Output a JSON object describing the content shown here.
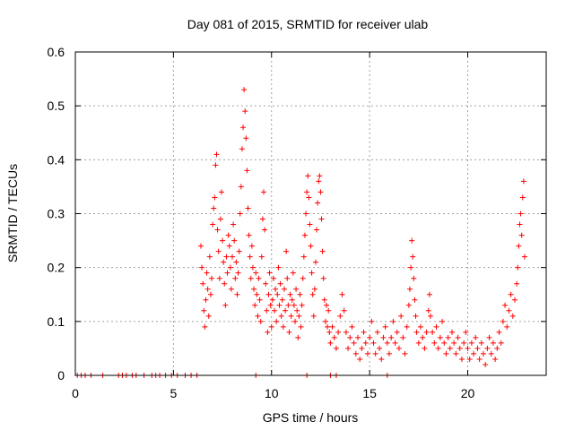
{
  "chart_data": {
    "type": "scatter",
    "title": "Day 081 of 2015, SRMTID for receiver ulab",
    "xlabel": "GPS time / hours",
    "ylabel": "SRMTID / TECUs",
    "xlim": [
      0,
      24
    ],
    "ylim": [
      0,
      0.6
    ],
    "grid": true,
    "marker": "+",
    "color": "#ff0000",
    "xticks": [
      {
        "value": 0,
        "label": "0"
      },
      {
        "value": 5,
        "label": "5"
      },
      {
        "value": 10,
        "label": "10"
      },
      {
        "value": 15,
        "label": "15"
      },
      {
        "value": 20,
        "label": "20"
      }
    ],
    "yticks": [
      {
        "value": 0,
        "label": "0"
      },
      {
        "value": 0.1,
        "label": "0.1"
      },
      {
        "value": 0.2,
        "label": "0.2"
      },
      {
        "value": 0.3,
        "label": "0.3"
      },
      {
        "value": 0.4,
        "label": "0.4"
      },
      {
        "value": 0.5,
        "label": "0.5"
      },
      {
        "value": 0.6,
        "label": "0.6"
      }
    ],
    "series": [
      {
        "name": "SRMTID",
        "points": [
          [
            0.1,
            0
          ],
          [
            0.3,
            0
          ],
          [
            0.5,
            0
          ],
          [
            0.8,
            0
          ],
          [
            1.4,
            0
          ],
          [
            2.2,
            0
          ],
          [
            2.4,
            0
          ],
          [
            2.6,
            0
          ],
          [
            2.9,
            0
          ],
          [
            3.1,
            0
          ],
          [
            3.5,
            0
          ],
          [
            3.9,
            0
          ],
          [
            4.1,
            0
          ],
          [
            4.3,
            0
          ],
          [
            4.6,
            0
          ],
          [
            4.9,
            0
          ],
          [
            5.2,
            0
          ],
          [
            5.6,
            0
          ],
          [
            5.9,
            0
          ],
          [
            6.2,
            0
          ],
          [
            9.2,
            0
          ],
          [
            11.8,
            0
          ],
          [
            13.0,
            0
          ],
          [
            13.3,
            0
          ],
          [
            15.9,
            0
          ],
          [
            6.4,
            0.24
          ],
          [
            6.45,
            0.2
          ],
          [
            6.5,
            0.17
          ],
          [
            6.55,
            0.12
          ],
          [
            6.6,
            0.09
          ],
          [
            6.65,
            0.14
          ],
          [
            6.7,
            0.19
          ],
          [
            6.75,
            0.16
          ],
          [
            6.8,
            0.11
          ],
          [
            6.85,
            0.22
          ],
          [
            6.9,
            0.15
          ],
          [
            6.95,
            0.18
          ],
          [
            7.0,
            0.28
          ],
          [
            7.05,
            0.31
          ],
          [
            7.1,
            0.33
          ],
          [
            7.15,
            0.39
          ],
          [
            7.2,
            0.41
          ],
          [
            7.25,
            0.27
          ],
          [
            7.3,
            0.23
          ],
          [
            7.35,
            0.18
          ],
          [
            7.4,
            0.29
          ],
          [
            7.45,
            0.34
          ],
          [
            7.5,
            0.25
          ],
          [
            7.55,
            0.21
          ],
          [
            7.6,
            0.17
          ],
          [
            7.65,
            0.13
          ],
          [
            7.7,
            0.22
          ],
          [
            7.75,
            0.19
          ],
          [
            7.8,
            0.26
          ],
          [
            7.85,
            0.24
          ],
          [
            7.9,
            0.2
          ],
          [
            7.95,
            0.16
          ],
          [
            8.0,
            0.22
          ],
          [
            8.05,
            0.28
          ],
          [
            8.1,
            0.25
          ],
          [
            8.15,
            0.18
          ],
          [
            8.2,
            0.21
          ],
          [
            8.25,
            0.15
          ],
          [
            8.3,
            0.19
          ],
          [
            8.35,
            0.23
          ],
          [
            8.4,
            0.3
          ],
          [
            8.45,
            0.35
          ],
          [
            8.5,
            0.42
          ],
          [
            8.55,
            0.46
          ],
          [
            8.6,
            0.53
          ],
          [
            8.65,
            0.49
          ],
          [
            8.7,
            0.44
          ],
          [
            8.75,
            0.38
          ],
          [
            8.8,
            0.31
          ],
          [
            8.85,
            0.26
          ],
          [
            8.9,
            0.22
          ],
          [
            8.95,
            0.18
          ],
          [
            9.0,
            0.24
          ],
          [
            9.05,
            0.2
          ],
          [
            9.1,
            0.16
          ],
          [
            9.15,
            0.13
          ],
          [
            9.2,
            0.19
          ],
          [
            9.25,
            0.15
          ],
          [
            9.3,
            0.11
          ],
          [
            9.35,
            0.18
          ],
          [
            9.4,
            0.14
          ],
          [
            9.45,
            0.1
          ],
          [
            9.5,
            0.22
          ],
          [
            9.55,
            0.29
          ],
          [
            9.6,
            0.34
          ],
          [
            9.65,
            0.27
          ],
          [
            9.7,
            0.17
          ],
          [
            9.75,
            0.12
          ],
          [
            9.8,
            0.08
          ],
          [
            9.85,
            0.15
          ],
          [
            9.9,
            0.19
          ],
          [
            9.95,
            0.13
          ],
          [
            10.0,
            0.09
          ],
          [
            10.05,
            0.14
          ],
          [
            10.1,
            0.18
          ],
          [
            10.15,
            0.12
          ],
          [
            10.2,
            0.16
          ],
          [
            10.25,
            0.1
          ],
          [
            10.3,
            0.15
          ],
          [
            10.35,
            0.2
          ],
          [
            10.4,
            0.13
          ],
          [
            10.45,
            0.17
          ],
          [
            10.5,
            0.11
          ],
          [
            10.55,
            0.14
          ],
          [
            10.6,
            0.09
          ],
          [
            10.65,
            0.16
          ],
          [
            10.7,
            0.12
          ],
          [
            10.75,
            0.23
          ],
          [
            10.8,
            0.18
          ],
          [
            10.85,
            0.13
          ],
          [
            10.9,
            0.08
          ],
          [
            10.95,
            0.15
          ],
          [
            11.0,
            0.11
          ],
          [
            11.05,
            0.14
          ],
          [
            11.1,
            0.19
          ],
          [
            11.15,
            0.13
          ],
          [
            11.2,
            0.1
          ],
          [
            11.25,
            0.16
          ],
          [
            11.3,
            0.12
          ],
          [
            11.35,
            0.07
          ],
          [
            11.4,
            0.11
          ],
          [
            11.45,
            0.15
          ],
          [
            11.5,
            0.09
          ],
          [
            11.55,
            0.13
          ],
          [
            11.6,
            0.18
          ],
          [
            11.65,
            0.22
          ],
          [
            11.7,
            0.26
          ],
          [
            11.75,
            0.3
          ],
          [
            11.8,
            0.34
          ],
          [
            11.85,
            0.37
          ],
          [
            11.9,
            0.33
          ],
          [
            11.95,
            0.28
          ],
          [
            12.0,
            0.24
          ],
          [
            12.05,
            0.19
          ],
          [
            12.1,
            0.15
          ],
          [
            12.15,
            0.11
          ],
          [
            12.2,
            0.16
          ],
          [
            12.25,
            0.21
          ],
          [
            12.3,
            0.27
          ],
          [
            12.35,
            0.32
          ],
          [
            12.4,
            0.36
          ],
          [
            12.45,
            0.37
          ],
          [
            12.5,
            0.34
          ],
          [
            12.55,
            0.29
          ],
          [
            12.6,
            0.23
          ],
          [
            12.65,
            0.18
          ],
          [
            12.7,
            0.14
          ],
          [
            12.75,
            0.1
          ],
          [
            12.8,
            0.13
          ],
          [
            12.85,
            0.09
          ],
          [
            12.9,
            0.12
          ],
          [
            12.95,
            0.08
          ],
          [
            13.0,
            0.06
          ],
          [
            13.1,
            0.09
          ],
          [
            13.2,
            0.07
          ],
          [
            13.3,
            0.05
          ],
          [
            13.4,
            0.08
          ],
          [
            13.5,
            0.11
          ],
          [
            13.6,
            0.15
          ],
          [
            13.7,
            0.12
          ],
          [
            13.8,
            0.08
          ],
          [
            13.9,
            0.05
          ],
          [
            14.0,
            0.07
          ],
          [
            14.1,
            0.09
          ],
          [
            14.2,
            0.06
          ],
          [
            14.3,
            0.04
          ],
          [
            14.4,
            0.07
          ],
          [
            14.5,
            0.03
          ],
          [
            14.6,
            0.05
          ],
          [
            14.7,
            0.08
          ],
          [
            14.8,
            0.06
          ],
          [
            14.9,
            0.04
          ],
          [
            15.0,
            0.07
          ],
          [
            15.1,
            0.1
          ],
          [
            15.2,
            0.06
          ],
          [
            15.3,
            0.04
          ],
          [
            15.4,
            0.08
          ],
          [
            15.5,
            0.05
          ],
          [
            15.6,
            0.03
          ],
          [
            15.7,
            0.07
          ],
          [
            15.8,
            0.09
          ],
          [
            15.9,
            0.06
          ],
          [
            16.0,
            0.04
          ],
          [
            16.1,
            0.07
          ],
          [
            16.2,
            0.1
          ],
          [
            16.3,
            0.06
          ],
          [
            16.4,
            0.08
          ],
          [
            16.5,
            0.05
          ],
          [
            16.6,
            0.11
          ],
          [
            16.7,
            0.07
          ],
          [
            16.8,
            0.04
          ],
          [
            16.9,
            0.09
          ],
          [
            17.0,
            0.13
          ],
          [
            17.05,
            0.16
          ],
          [
            17.1,
            0.2
          ],
          [
            17.15,
            0.25
          ],
          [
            17.2,
            0.22
          ],
          [
            17.25,
            0.18
          ],
          [
            17.3,
            0.14
          ],
          [
            17.35,
            0.11
          ],
          [
            17.4,
            0.08
          ],
          [
            17.5,
            0.06
          ],
          [
            17.6,
            0.09
          ],
          [
            17.7,
            0.07
          ],
          [
            17.8,
            0.05
          ],
          [
            17.9,
            0.08
          ],
          [
            18.0,
            0.12
          ],
          [
            18.05,
            0.15
          ],
          [
            18.1,
            0.11
          ],
          [
            18.2,
            0.08
          ],
          [
            18.3,
            0.06
          ],
          [
            18.4,
            0.09
          ],
          [
            18.5,
            0.05
          ],
          [
            18.6,
            0.07
          ],
          [
            18.7,
            0.1
          ],
          [
            18.8,
            0.06
          ],
          [
            18.9,
            0.04
          ],
          [
            19.0,
            0.07
          ],
          [
            19.1,
            0.05
          ],
          [
            19.2,
            0.08
          ],
          [
            19.3,
            0.06
          ],
          [
            19.4,
            0.04
          ],
          [
            19.5,
            0.07
          ],
          [
            19.6,
            0.05
          ],
          [
            19.7,
            0.03
          ],
          [
            19.8,
            0.06
          ],
          [
            19.9,
            0.08
          ],
          [
            20.0,
            0.05
          ],
          [
            20.1,
            0.03
          ],
          [
            20.2,
            0.06
          ],
          [
            20.3,
            0.04
          ],
          [
            20.4,
            0.07
          ],
          [
            20.5,
            0.05
          ],
          [
            20.6,
            0.03
          ],
          [
            20.7,
            0.06
          ],
          [
            20.8,
            0.04
          ],
          [
            20.9,
            0.02
          ],
          [
            21.0,
            0.05
          ],
          [
            21.1,
            0.07
          ],
          [
            21.2,
            0.04
          ],
          [
            21.3,
            0.06
          ],
          [
            21.4,
            0.03
          ],
          [
            21.5,
            0.05
          ],
          [
            21.6,
            0.08
          ],
          [
            21.7,
            0.06
          ],
          [
            21.8,
            0.1
          ],
          [
            21.9,
            0.13
          ],
          [
            22.0,
            0.09
          ],
          [
            22.1,
            0.12
          ],
          [
            22.2,
            0.15
          ],
          [
            22.3,
            0.11
          ],
          [
            22.4,
            0.14
          ],
          [
            22.5,
            0.17
          ],
          [
            22.55,
            0.2
          ],
          [
            22.6,
            0.24
          ],
          [
            22.65,
            0.28
          ],
          [
            22.7,
            0.3
          ],
          [
            22.75,
            0.26
          ],
          [
            22.8,
            0.33
          ],
          [
            22.85,
            0.36
          ],
          [
            22.9,
            0.22
          ]
        ]
      }
    ]
  }
}
